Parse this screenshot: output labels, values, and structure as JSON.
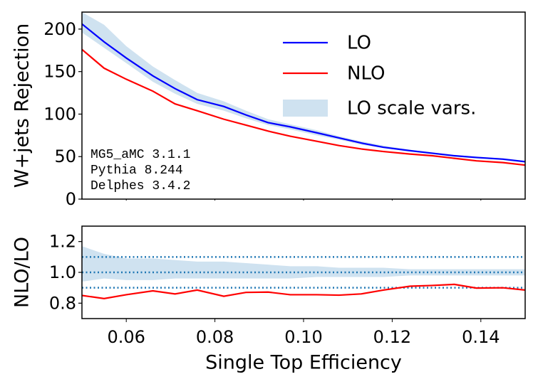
{
  "chart_data": [
    {
      "type": "line",
      "ylabel": "W+jets Rejection",
      "x": [
        0.05,
        0.055,
        0.06,
        0.066,
        0.071,
        0.076,
        0.082,
        0.087,
        0.092,
        0.097,
        0.103,
        0.108,
        0.113,
        0.118,
        0.124,
        0.129,
        0.134,
        0.139,
        0.145,
        0.15
      ],
      "series": [
        {
          "name": "LO",
          "color": "#0000ff",
          "values": [
            206,
            185,
            166,
            145,
            130,
            117,
            109,
            99,
            90,
            85,
            78,
            72,
            66,
            61,
            57,
            54,
            51,
            49,
            47,
            44
          ]
        },
        {
          "name": "NLO",
          "color": "#ff0000",
          "values": [
            176,
            154,
            141,
            127,
            112,
            104,
            94,
            87,
            80,
            74,
            68,
            63,
            59,
            56,
            53,
            51,
            48,
            45,
            43,
            40
          ]
        }
      ],
      "band": {
        "name": "LO scale vars.",
        "color": "#cfe2f0",
        "upper": [
          220,
          205,
          180,
          156,
          140,
          125,
          115,
          104,
          94,
          88,
          81,
          74,
          68,
          63,
          58,
          55,
          52,
          50,
          48,
          45
        ],
        "lower": [
          196,
          178,
          160,
          138,
          124,
          112,
          104,
          95,
          87,
          82,
          75,
          70,
          64,
          60,
          56,
          53,
          50,
          48,
          46,
          43
        ]
      },
      "annotations": [
        "MG5_aMC 3.1.1",
        "Pythia 8.244",
        "Delphes 3.4.2"
      ],
      "legend": "upper right",
      "xlim": [
        0.05,
        0.15
      ],
      "xticks": [
        0.06,
        0.08,
        0.1,
        0.12,
        0.14
      ],
      "xtick_labels": false,
      "ylim": [
        0,
        220
      ],
      "yticks": [
        0,
        50,
        100,
        150,
        200
      ]
    },
    {
      "type": "line",
      "ylabel": "NLO/LO",
      "xlabel": "Single Top Efficiency",
      "x": [
        0.05,
        0.055,
        0.06,
        0.066,
        0.071,
        0.076,
        0.082,
        0.087,
        0.092,
        0.097,
        0.103,
        0.108,
        0.113,
        0.118,
        0.124,
        0.129,
        0.134,
        0.139,
        0.145,
        0.15
      ],
      "series": [
        {
          "color": "#ff0000",
          "values": [
            0.85,
            0.83,
            0.855,
            0.88,
            0.86,
            0.885,
            0.845,
            0.87,
            0.872,
            0.855,
            0.855,
            0.852,
            0.86,
            0.885,
            0.91,
            0.915,
            0.922,
            0.898,
            0.9,
            0.885
          ]
        }
      ],
      "band": {
        "color": "#cfe2f0",
        "upper": [
          1.17,
          1.12,
          1.09,
          1.09,
          1.08,
          1.07,
          1.07,
          1.06,
          1.05,
          1.04,
          1.04,
          1.03,
          1.03,
          1.03,
          1.02,
          1.02,
          1.02,
          1.02,
          1.02,
          1.02
        ],
        "lower": [
          0.94,
          0.96,
          0.95,
          0.95,
          0.96,
          0.96,
          0.96,
          0.96,
          0.96,
          0.96,
          0.97,
          0.97,
          0.97,
          0.97,
          0.98,
          0.98,
          0.98,
          0.98,
          0.98,
          0.98
        ]
      },
      "hlines": [
        0.9,
        1,
        1.1
      ],
      "hline_color": "#1f77b4",
      "xlim": [
        0.05,
        0.15
      ],
      "xticks": [
        0.06,
        0.08,
        {
          "value": 0.1,
          "label": "0.10"
        },
        0.12,
        0.14
      ],
      "xtick_labels": true,
      "ylim": [
        0.7,
        1.3
      ],
      "yticks": [
        0.8,
        {
          "value": 1,
          "label": "1.0"
        },
        1.2
      ]
    }
  ]
}
